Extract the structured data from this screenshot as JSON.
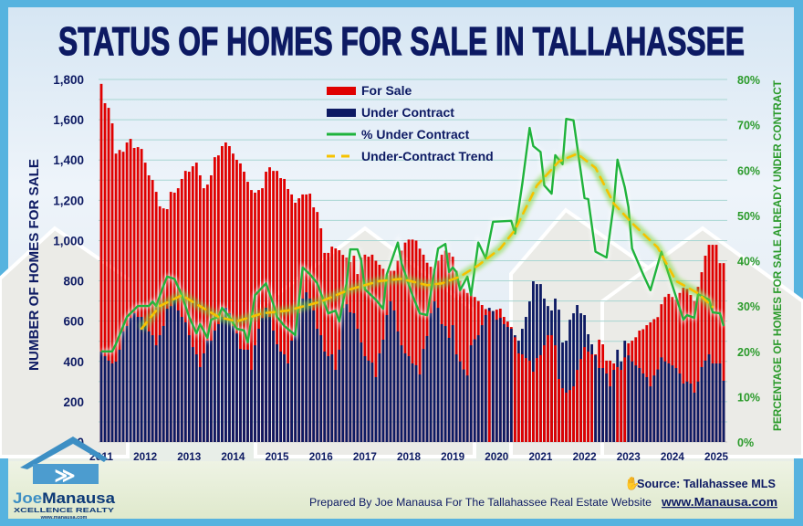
{
  "title": "STATUS OF HOMES FOR SALE IN TALLAHASSEE",
  "colors": {
    "border": "#56b3df",
    "for_sale": "#e00000",
    "under_contract": "#0d1a63",
    "pct_line": "#1fb33c",
    "trend": "#f6c200",
    "navy_text": "#0d1a63",
    "green_text": "#2a9a2a"
  },
  "footer": {
    "source": "Source: Tallahassee MLS",
    "source_icon": "hand-pointer-icon",
    "prepared_by": "Prepared By Joe Manausa For The Tallahassee Real Estate Website",
    "website": "www.Manausa.com"
  },
  "logo": {
    "name_first": "Joe",
    "name_last": "Manausa",
    "tagline": "XCELLENCE REALTY",
    "url": "www.manausa.com"
  },
  "chart_data": {
    "type": "bar",
    "title": "STATUS OF HOMES FOR SALE IN TALLAHASSEE",
    "xlabel": "",
    "ylabel": "NUMBER OF HOMES FOR SALE",
    "y2label": "PERCENTAGE OF HOMES FOR SALE ALREADY UNDER CONTRACT",
    "ylim": [
      0,
      1800
    ],
    "y2lim": [
      0,
      80
    ],
    "yticks": [
      "0",
      "200",
      "400",
      "600",
      "800",
      "1,000",
      "1,200",
      "1,400",
      "1,600",
      "1,800"
    ],
    "y2ticks": [
      "0%",
      "10%",
      "20%",
      "30%",
      "40%",
      "50%",
      "60%",
      "70%",
      "80%"
    ],
    "xticks": [
      "2011",
      "2012",
      "2013",
      "2014",
      "2015",
      "2016",
      "2017",
      "2018",
      "2019",
      "2020",
      "2021",
      "2022",
      "2023",
      "2024",
      "2025"
    ],
    "grid": true,
    "legend_placement": "top-center",
    "start_month": "2011-01",
    "series": [
      {
        "name": "For Sale",
        "type": "bar",
        "axis": "left",
        "values": [
          1778,
          1682,
          1659,
          1582,
          1432,
          1450,
          1441,
          1487,
          1505,
          1460,
          1464,
          1455,
          1387,
          1324,
          1301,
          1242,
          1170,
          1160,
          1156,
          1242,
          1238,
          1260,
          1306,
          1346,
          1342,
          1369,
          1387,
          1324,
          1260,
          1278,
          1324,
          1414,
          1423,
          1469,
          1487,
          1469,
          1432,
          1401,
          1383,
          1342,
          1292,
          1251,
          1238,
          1251,
          1260,
          1342,
          1364,
          1346,
          1346,
          1310,
          1306,
          1256,
          1229,
          1188,
          1210,
          1229,
          1229,
          1233,
          1165,
          1142,
          1061,
          939,
          939,
          970,
          961,
          952,
          929,
          916,
          893,
          925,
          834,
          916,
          930,
          920,
          930,
          900,
          880,
          860,
          830,
          850,
          850,
          900,
          950,
          990,
          1005,
          1005,
          1000,
          960,
          930,
          890,
          870,
          860,
          900,
          930,
          950,
          940,
          920,
          850,
          800,
          760,
          740,
          757,
          720,
          700,
          680,
          660,
          650,
          650,
          657,
          662,
          621,
          598,
          571,
          520,
          440,
          435,
          417,
          404,
          349,
          417,
          431,
          480,
          530,
          530,
          480,
          313,
          267,
          245,
          258,
          276,
          358,
          412,
          471,
          449,
          435,
          435,
          508,
          485,
          404,
          404,
          390,
          372,
          358,
          420,
          490,
          503,
          520,
          553,
          560,
          580,
          594,
          610,
          620,
          684,
          720,
          735,
          720,
          707,
          740,
          766,
          760,
          730,
          700,
          770,
          843,
          925,
          979,
          979,
          979,
          888,
          888
        ]
      },
      {
        "name": "Under Contract",
        "type": "bar",
        "axis": "left",
        "values": [
          449,
          426,
          404,
          390,
          399,
          458,
          549,
          576,
          616,
          639,
          621,
          621,
          576,
          549,
          530,
          480,
          530,
          576,
          662,
          675,
          707,
          653,
          621,
          594,
          530,
          471,
          435,
          372,
          440,
          503,
          503,
          553,
          585,
          621,
          666,
          639,
          576,
          539,
          462,
          458,
          458,
          358,
          480,
          562,
          616,
          666,
          621,
          553,
          485,
          449,
          435,
          390,
          503,
          553,
          639,
          712,
          743,
          712,
          653,
          562,
          530,
          449,
          426,
          435,
          358,
          458,
          666,
          684,
          644,
          639,
          562,
          494,
          426,
          404,
          394,
          322,
          440,
          508,
          630,
          698,
          653,
          549,
          480,
          440,
          426,
          390,
          381,
          335,
          462,
          526,
          639,
          698,
          666,
          585,
          576,
          517,
          580,
          435,
          400,
          360,
          330,
          480,
          510,
          530,
          580,
          630,
          666,
          650,
          607,
          616,
          585,
          571,
          562,
          530,
          503,
          562,
          621,
          698,
          798,
          784,
          784,
          712,
          675,
          653,
          712,
          657,
          494,
          503,
          607,
          639,
          680,
          639,
          630,
          535,
          485,
          430,
          367,
          367,
          340,
          276,
          358,
          458,
          400,
          503,
          430,
          400,
          380,
          367,
          340,
          322,
          276,
          330,
          360,
          420,
          400,
          390,
          380,
          367,
          340,
          290,
          300,
          290,
          245,
          300,
          372,
          404,
          435,
          390,
          390,
          390,
          304
        ]
      },
      {
        "name": "% Under Contract",
        "type": "line",
        "axis": "right",
        "points": [
          [
            "2011-01",
            20
          ],
          [
            "2011-04",
            20
          ],
          [
            "2011-05",
            21.6
          ],
          [
            "2011-08",
            27.6
          ],
          [
            "2011-11",
            30
          ],
          [
            "2012-02",
            30
          ],
          [
            "2012-03",
            31
          ],
          [
            "2012-04",
            30
          ],
          [
            "2012-06",
            34.5
          ],
          [
            "2012-07",
            36.5
          ],
          [
            "2012-09",
            36
          ],
          [
            "2012-11",
            32.4
          ],
          [
            "2013-01",
            27.6
          ],
          [
            "2013-03",
            24
          ],
          [
            "2013-04",
            26
          ],
          [
            "2013-06",
            23
          ],
          [
            "2013-07",
            27
          ],
          [
            "2013-09",
            27.6
          ],
          [
            "2013-10",
            29.6
          ],
          [
            "2013-12",
            27.6
          ],
          [
            "2014-02",
            25
          ],
          [
            "2014-04",
            24.6
          ],
          [
            "2014-05",
            22
          ],
          [
            "2014-07",
            32.4
          ],
          [
            "2014-10",
            35
          ],
          [
            "2014-12",
            30.4
          ],
          [
            "2015-01",
            27.6
          ],
          [
            "2015-03",
            25.6
          ],
          [
            "2015-06",
            23.6
          ],
          [
            "2015-08",
            38.5
          ],
          [
            "2015-10",
            37
          ],
          [
            "2015-12",
            35
          ],
          [
            "2016-03",
            28.4
          ],
          [
            "2016-05",
            29
          ],
          [
            "2016-06",
            26.6
          ],
          [
            "2016-08",
            35
          ],
          [
            "2016-09",
            42.5
          ],
          [
            "2016-11",
            42.5
          ],
          [
            "2016-12",
            40
          ],
          [
            "2017-01",
            33.7
          ],
          [
            "2017-04",
            31.4
          ],
          [
            "2017-06",
            29.4
          ],
          [
            "2017-07",
            37
          ],
          [
            "2017-10",
            44
          ],
          [
            "2017-11",
            39.5
          ],
          [
            "2018-02",
            32.4
          ],
          [
            "2018-04",
            28.4
          ],
          [
            "2018-06",
            28
          ],
          [
            "2018-09",
            42.7
          ],
          [
            "2018-11",
            43.7
          ],
          [
            "2018-12",
            37.5
          ],
          [
            "2019-01",
            38.5
          ],
          [
            "2019-02",
            37.5
          ],
          [
            "2019-03",
            33.5
          ],
          [
            "2019-05",
            36.5
          ],
          [
            "2019-06",
            32.4
          ],
          [
            "2019-08",
            44
          ],
          [
            "2019-10",
            40.5
          ],
          [
            "2019-12",
            48.6
          ],
          [
            "2020-05",
            48.8
          ],
          [
            "2020-06",
            46
          ],
          [
            "2020-08",
            57
          ],
          [
            "2020-10",
            69.3
          ],
          [
            "2020-11",
            65.3
          ],
          [
            "2021-01",
            64
          ],
          [
            "2021-02",
            56.6
          ],
          [
            "2021-04",
            54.8
          ],
          [
            "2021-05",
            63.3
          ],
          [
            "2021-07",
            61.3
          ],
          [
            "2021-08",
            71.3
          ],
          [
            "2021-10",
            71
          ],
          [
            "2022-01",
            53.8
          ],
          [
            "2022-02",
            53.6
          ],
          [
            "2022-04",
            42
          ],
          [
            "2022-07",
            40.7
          ],
          [
            "2022-09",
            52.6
          ],
          [
            "2022-10",
            62.3
          ],
          [
            "2022-12",
            56.2
          ],
          [
            "2023-01",
            51.8
          ],
          [
            "2023-02",
            42.7
          ],
          [
            "2023-05",
            37
          ],
          [
            "2023-07",
            33.5
          ],
          [
            "2023-10",
            42
          ],
          [
            "2024-01",
            34.5
          ],
          [
            "2024-04",
            27
          ],
          [
            "2024-05",
            28
          ],
          [
            "2024-07",
            27.4
          ],
          [
            "2024-08",
            32.6
          ],
          [
            "2024-11",
            31.4
          ],
          [
            "2024-12",
            28.6
          ],
          [
            "2025-02",
            28.4
          ],
          [
            "2025-03",
            25.6
          ]
        ]
      },
      {
        "name": "Under-Contract Trend",
        "type": "line",
        "style": "dashed",
        "axis": "right",
        "points": [
          [
            "2011-12",
            25
          ],
          [
            "2012-05",
            30
          ],
          [
            "2012-11",
            32.4
          ],
          [
            "2013-03",
            30.4
          ],
          [
            "2013-09",
            27.6
          ],
          [
            "2014-02",
            26.6
          ],
          [
            "2014-09",
            28.4
          ],
          [
            "2015-04",
            29
          ],
          [
            "2016-01",
            31
          ],
          [
            "2016-09",
            33.7
          ],
          [
            "2017-05",
            35.5
          ],
          [
            "2017-11",
            36
          ],
          [
            "2018-06",
            34.6
          ],
          [
            "2018-10",
            35
          ],
          [
            "2019-03",
            36.5
          ],
          [
            "2019-08",
            39
          ],
          [
            "2020-02",
            42.7
          ],
          [
            "2020-06",
            46.8
          ],
          [
            "2020-12",
            56.6
          ],
          [
            "2021-06",
            61.9
          ],
          [
            "2021-11",
            63.6
          ],
          [
            "2022-04",
            60.5
          ],
          [
            "2022-09",
            52.6
          ],
          [
            "2023-02",
            48.3
          ],
          [
            "2023-09",
            42.9
          ],
          [
            "2024-02",
            35.5
          ],
          [
            "2024-08",
            32.8
          ],
          [
            "2024-12",
            29.8
          ]
        ]
      }
    ]
  }
}
